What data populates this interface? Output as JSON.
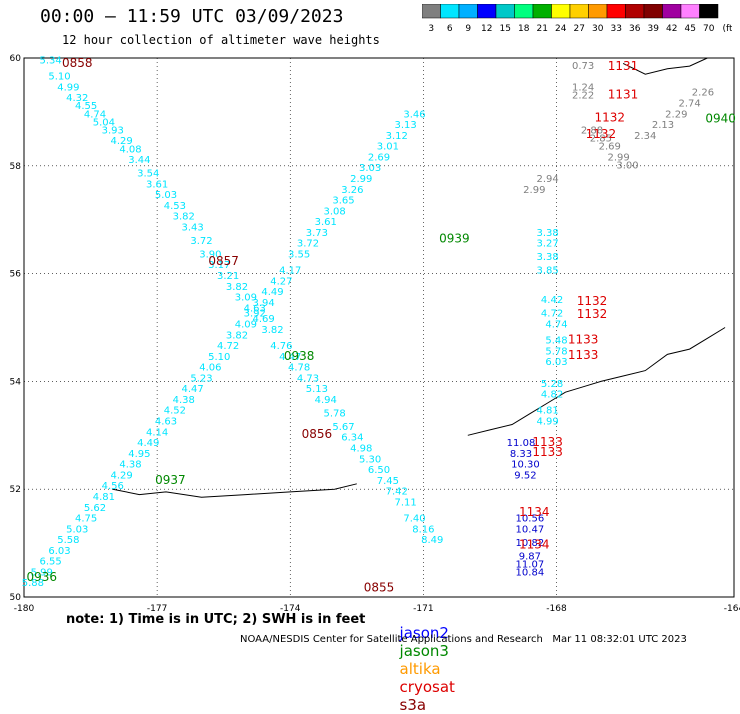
{
  "title": "00:00 – 11:59 UTC 03/09/2023",
  "subtitle": "12 hour collection of altimeter wave heights",
  "colorbar": {
    "labels": [
      "3",
      "6",
      "9",
      "12",
      "15",
      "18",
      "21",
      "24",
      "27",
      "30",
      "33",
      "36",
      "39",
      "42",
      "45",
      "70",
      "(ft)"
    ],
    "colors": [
      "#7f7f7f",
      "#00e5ff",
      "#00b0ff",
      "#0000ff",
      "#00c8c8",
      "#00ff7f",
      "#00b000",
      "#ffff00",
      "#ffd000",
      "#ff9a00",
      "#ff0000",
      "#b00000",
      "#800000",
      "#a000a0",
      "#ff80ff",
      "#000000"
    ]
  },
  "footer_note": "note: 1) Time is in UTC; 2) SWH is in feet",
  "legend": [
    {
      "label": "jason2",
      "color": "#0000ff"
    },
    {
      "label": "jason3",
      "color": "#008800"
    },
    {
      "label": "altika",
      "color": "#ff9a00"
    },
    {
      "label": "cryosat",
      "color": "#dd0000"
    },
    {
      "label": "s3a",
      "color": "#880000"
    }
  ],
  "credit": "NOAA/NESDIS Center for Satellite Applications and Research   Mar 11 08:32:01 UTC 2023",
  "chart_data": {
    "type": "scatter",
    "xlim": [
      -180,
      -164
    ],
    "ylim": [
      50,
      60
    ],
    "xticks": [
      "-180",
      "-177",
      "-174",
      "-171",
      "-168",
      "-164"
    ],
    "yticks": [
      "50",
      "52",
      "54",
      "56",
      "58",
      "60"
    ],
    "grid": true,
    "time_labels": [
      {
        "text": "0858",
        "lon": -178.8,
        "lat": 59.83,
        "color": "#880000"
      },
      {
        "text": "0857",
        "lon": -175.5,
        "lat": 56.16,
        "color": "#880000"
      },
      {
        "text": "0856",
        "lon": -173.4,
        "lat": 52.95,
        "color": "#880000"
      },
      {
        "text": "0855",
        "lon": -172.0,
        "lat": 50.1,
        "color": "#880000"
      },
      {
        "text": "0940",
        "lon": -164.3,
        "lat": 58.8,
        "color": "#008800"
      },
      {
        "text": "0939",
        "lon": -170.3,
        "lat": 56.58,
        "color": "#008800"
      },
      {
        "text": "0938",
        "lon": -173.8,
        "lat": 54.4,
        "color": "#008800"
      },
      {
        "text": "0937",
        "lon": -176.7,
        "lat": 52.1,
        "color": "#008800"
      },
      {
        "text": "0936",
        "lon": -179.6,
        "lat": 50.3,
        "color": "#008800"
      },
      {
        "text": "1131",
        "lon": -166.5,
        "lat": 59.78,
        "color": "#dd0000"
      },
      {
        "text": "1131",
        "lon": -166.5,
        "lat": 59.25,
        "color": "#dd0000"
      },
      {
        "text": "1132",
        "lon": -166.8,
        "lat": 58.82,
        "color": "#dd0000"
      },
      {
        "text": "1132",
        "lon": -167.0,
        "lat": 58.52,
        "color": "#dd0000"
      },
      {
        "text": "1132",
        "lon": -167.2,
        "lat": 55.42,
        "color": "#dd0000"
      },
      {
        "text": "1132",
        "lon": -167.2,
        "lat": 55.18,
        "color": "#dd0000"
      },
      {
        "text": "1133",
        "lon": -167.4,
        "lat": 54.7,
        "color": "#dd0000"
      },
      {
        "text": "1133",
        "lon": -167.4,
        "lat": 54.42,
        "color": "#dd0000"
      },
      {
        "text": "1133",
        "lon": -168.2,
        "lat": 52.8,
        "color": "#dd0000"
      },
      {
        "text": "1133",
        "lon": -168.2,
        "lat": 52.62,
        "color": "#dd0000"
      },
      {
        "text": "1134",
        "lon": -168.5,
        "lat": 51.5,
        "color": "#dd0000"
      },
      {
        "text": "1134",
        "lon": -168.5,
        "lat": 50.9,
        "color": "#dd0000"
      }
    ],
    "series": [
      {
        "color": "#00e5ff",
        "points": [
          [
            -179.4,
            59.9,
            "5.34"
          ],
          [
            -179.2,
            59.6,
            "5.10"
          ],
          [
            -179.0,
            59.4,
            "4.99"
          ],
          [
            -178.8,
            59.2,
            "4.32"
          ],
          [
            -178.6,
            59.05,
            "4.55"
          ],
          [
            -178.4,
            58.9,
            "4.74"
          ],
          [
            -178.2,
            58.75,
            "5.04"
          ],
          [
            -178.0,
            58.6,
            "3.93"
          ],
          [
            -177.8,
            58.4,
            "4.29"
          ],
          [
            -177.6,
            58.25,
            "4.08"
          ],
          [
            -177.4,
            58.05,
            "3.44"
          ],
          [
            -177.2,
            57.8,
            "3.54"
          ],
          [
            -177.0,
            57.6,
            "3.61"
          ],
          [
            -176.8,
            57.4,
            "5.03"
          ],
          [
            -176.6,
            57.2,
            "4.53"
          ],
          [
            -176.4,
            57.0,
            "3.82"
          ],
          [
            -176.2,
            56.8,
            "3.43"
          ],
          [
            -176.0,
            56.55,
            "3.72"
          ],
          [
            -175.8,
            56.3,
            "3.90"
          ],
          [
            -175.6,
            56.1,
            "3.17"
          ],
          [
            -175.4,
            55.9,
            "3.21"
          ],
          [
            -175.2,
            55.7,
            "3.82"
          ],
          [
            -175.0,
            55.5,
            "3.09"
          ],
          [
            -174.8,
            55.3,
            "4.63"
          ],
          [
            -174.6,
            55.1,
            "4.69"
          ],
          [
            -174.4,
            54.9,
            "3.82"
          ],
          [
            -174.2,
            54.6,
            "4.76"
          ],
          [
            -174.0,
            54.4,
            "4.47"
          ],
          [
            -173.8,
            54.2,
            "4.78"
          ],
          [
            -173.6,
            54.0,
            "4.73"
          ],
          [
            -173.4,
            53.8,
            "5.13"
          ],
          [
            -173.2,
            53.6,
            "4.94"
          ],
          [
            -173.0,
            53.35,
            "5.78"
          ],
          [
            -172.8,
            53.1,
            "5.67"
          ],
          [
            -172.6,
            52.9,
            "6.34"
          ],
          [
            -172.4,
            52.7,
            "4.98"
          ],
          [
            -172.2,
            52.5,
            "5.30"
          ],
          [
            -172.0,
            52.3,
            "6.50"
          ],
          [
            -171.8,
            52.1,
            "7.45"
          ],
          [
            -171.6,
            51.9,
            "7.42"
          ],
          [
            -171.4,
            51.7,
            "7.11"
          ],
          [
            -171.2,
            51.4,
            "7.40"
          ],
          [
            -171.0,
            51.2,
            "8.16"
          ],
          [
            -170.8,
            51.0,
            "8.49"
          ]
        ]
      },
      {
        "color": "#00e5ff",
        "points": [
          [
            -179.8,
            50.2,
            "5.88"
          ],
          [
            -179.6,
            50.4,
            "5.99"
          ],
          [
            -179.4,
            50.6,
            "6.55"
          ],
          [
            -179.2,
            50.8,
            "6.03"
          ],
          [
            -179.0,
            51.0,
            "5.58"
          ],
          [
            -178.8,
            51.2,
            "5.03"
          ],
          [
            -178.6,
            51.4,
            "4.75"
          ],
          [
            -178.4,
            51.6,
            "5.62"
          ],
          [
            -178.2,
            51.8,
            "4.81"
          ],
          [
            -178.0,
            52.0,
            "4.56"
          ],
          [
            -177.8,
            52.2,
            "4.29"
          ],
          [
            -177.6,
            52.4,
            "4.38"
          ],
          [
            -177.4,
            52.6,
            "4.95"
          ],
          [
            -177.2,
            52.8,
            "4.49"
          ],
          [
            -177.0,
            53.0,
            "4.14"
          ],
          [
            -176.8,
            53.2,
            "4.63"
          ],
          [
            -176.6,
            53.4,
            "4.52"
          ],
          [
            -176.4,
            53.6,
            "4.38"
          ],
          [
            -176.2,
            53.8,
            "4.47"
          ],
          [
            -176.0,
            54.0,
            "5.23"
          ],
          [
            -175.8,
            54.2,
            "4.06"
          ],
          [
            -175.6,
            54.4,
            "5.10"
          ],
          [
            -175.4,
            54.6,
            "4.72"
          ],
          [
            -175.2,
            54.8,
            "3.82"
          ],
          [
            -175.0,
            55.0,
            "4.09"
          ],
          [
            -174.8,
            55.2,
            "3.92"
          ],
          [
            -174.6,
            55.4,
            "3.94"
          ],
          [
            -174.4,
            55.6,
            "4.49"
          ],
          [
            -174.2,
            55.8,
            "4.27"
          ],
          [
            -174.0,
            56.0,
            "4.17"
          ],
          [
            -173.8,
            56.3,
            "3.55"
          ],
          [
            -173.6,
            56.5,
            "3.72"
          ],
          [
            -173.4,
            56.7,
            "3.73"
          ],
          [
            -173.2,
            56.9,
            "3.61"
          ],
          [
            -173.0,
            57.1,
            "3.08"
          ],
          [
            -172.8,
            57.3,
            "3.65"
          ],
          [
            -172.6,
            57.5,
            "3.26"
          ],
          [
            -172.4,
            57.7,
            "2.99"
          ],
          [
            -172.2,
            57.9,
            "3.03"
          ],
          [
            -172.0,
            58.1,
            "2.69"
          ],
          [
            -171.8,
            58.3,
            "3.01"
          ],
          [
            -171.6,
            58.5,
            "3.12"
          ],
          [
            -171.4,
            58.7,
            "3.13"
          ],
          [
            -171.2,
            58.9,
            "3.46"
          ]
        ]
      },
      {
        "color": "#7f7f7f",
        "points": [
          [
            -167.4,
            59.8,
            "0.73"
          ],
          [
            -167.4,
            59.4,
            "1.24"
          ],
          [
            -167.4,
            59.25,
            "2.22"
          ],
          [
            -167.2,
            58.6,
            "2.88"
          ],
          [
            -167.0,
            58.45,
            "2.85"
          ],
          [
            -166.8,
            58.3,
            "2.69"
          ],
          [
            -166.6,
            58.1,
            "2.99"
          ],
          [
            -166.4,
            57.95,
            "3.00"
          ],
          [
            -166.0,
            58.5,
            "2.34"
          ],
          [
            -165.6,
            58.7,
            "2.13"
          ],
          [
            -165.3,
            58.9,
            "2.29"
          ],
          [
            -165.0,
            59.1,
            "2.74"
          ],
          [
            -164.7,
            59.3,
            "2.26"
          ],
          [
            -168.5,
            57.5,
            "2.99"
          ],
          [
            -168.2,
            57.7,
            "2.94"
          ]
        ]
      },
      {
        "color": "#00e5ff",
        "points": [
          [
            -168.2,
            56.0,
            "3.85"
          ],
          [
            -168.2,
            56.25,
            "3.38"
          ],
          [
            -168.2,
            56.5,
            "3.27"
          ],
          [
            -168.2,
            56.7,
            "3.38"
          ],
          [
            -168.1,
            55.45,
            "4.42"
          ],
          [
            -168.1,
            55.2,
            "4.72"
          ],
          [
            -168.0,
            55.0,
            "4.74"
          ],
          [
            -168.0,
            54.7,
            "5.48"
          ],
          [
            -168.0,
            54.5,
            "5.78"
          ],
          [
            -168.0,
            54.3,
            "6.03"
          ],
          [
            -168.1,
            53.9,
            "5.28"
          ],
          [
            -168.1,
            53.7,
            "4.82"
          ],
          [
            -168.2,
            53.4,
            "4.81"
          ],
          [
            -168.2,
            53.2,
            "4.99"
          ]
        ]
      },
      {
        "color": "#0000cc",
        "points": [
          [
            -168.8,
            52.8,
            "11.08"
          ],
          [
            -168.8,
            52.6,
            "8.33"
          ],
          [
            -168.7,
            52.4,
            "10.30"
          ],
          [
            -168.7,
            52.2,
            "9.52"
          ],
          [
            -168.6,
            51.4,
            "10.56"
          ],
          [
            -168.6,
            51.2,
            "10.47"
          ],
          [
            -168.6,
            50.95,
            "10.82"
          ],
          [
            -168.6,
            50.7,
            "9.87"
          ],
          [
            -168.6,
            50.55,
            "11.07"
          ],
          [
            -168.6,
            50.4,
            "10.84"
          ]
        ]
      }
    ]
  }
}
